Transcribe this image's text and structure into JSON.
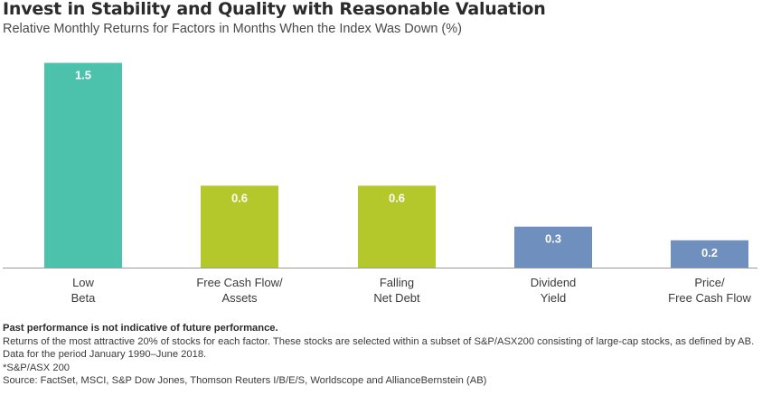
{
  "title": "Invest in Stability and Quality with Reasonable Valuation",
  "subtitle": "Relative Monthly Returns for Factors in Months When the Index Was Down (%)",
  "colors": {
    "teal": "#4cc2ad",
    "green": "#b5c82b",
    "blue": "#6f8fbf",
    "baseline": "#9a9a9a"
  },
  "chart_data": {
    "type": "bar",
    "categories": [
      [
        "Low",
        "Beta"
      ],
      [
        "Free Cash Flow/",
        "Assets"
      ],
      [
        "Falling",
        "Net Debt"
      ],
      [
        "Dividend",
        "Yield"
      ],
      [
        "Price/",
        "Free Cash Flow"
      ]
    ],
    "values": [
      1.5,
      0.6,
      0.6,
      0.3,
      0.2
    ],
    "value_labels": [
      "1.5",
      "0.6",
      "0.6",
      "0.3",
      "0.2"
    ],
    "bar_colors": [
      "#4cc2ad",
      "#b5c82b",
      "#b5c82b",
      "#6f8fbf",
      "#6f8fbf"
    ],
    "ylim": [
      0,
      1.55
    ],
    "grid": false,
    "legend": "none"
  },
  "footnotes": {
    "disclaimer": "Past performance is not indicative of future performance.",
    "line1": "Returns of the most attractive 20% of stocks for each factor. These stocks are selected within a subset of S&P/ASX200 consisting of large-cap stocks, as defined by AB.",
    "line2": "Data for the period January 1990–June 2018.",
    "line3": "*S&P/ASX 200",
    "line4": "Source: FactSet, MSCI, S&P Dow Jones, Thomson Reuters I/B/E/S, Worldscope and AllianceBernstein (AB)"
  }
}
